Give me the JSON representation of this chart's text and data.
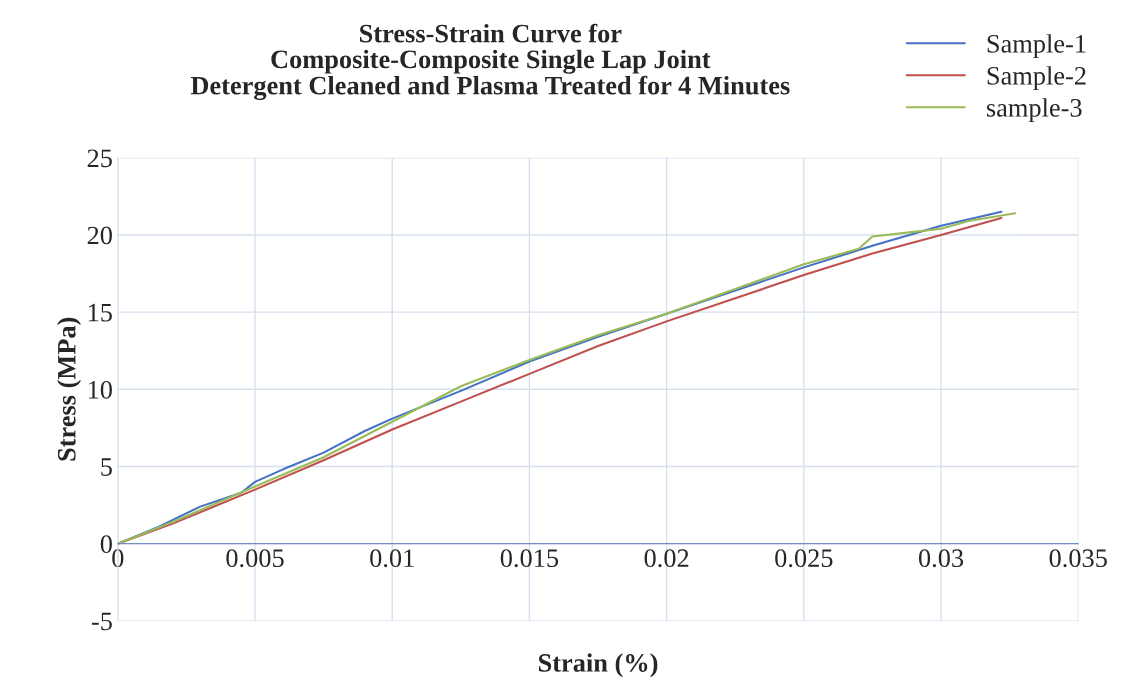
{
  "chart_data": {
    "type": "line",
    "title": "Stress-Strain Curve for\nComposite-Composite Single Lap Joint\nDetergent Cleaned and Plasma Treated for 4 Minutes",
    "xlabel": "Strain (%)",
    "ylabel": "Stress (MPa)",
    "xlim": [
      0,
      0.035
    ],
    "xticks": [
      0,
      0.005,
      0.01,
      0.015,
      0.02,
      0.025,
      0.03,
      0.035
    ],
    "ylim": [
      -5,
      25
    ],
    "yticks": [
      -5,
      0,
      5,
      10,
      15,
      20,
      25
    ],
    "grid": true,
    "legend": "top right",
    "marker": "none",
    "line_style": "solid",
    "series": [
      {
        "name": "Sample-1",
        "color": "#4472c4",
        "x": [
          0,
          0.0015,
          0.003,
          0.0045,
          0.005,
          0.006,
          0.0075,
          0.009,
          0.01,
          0.0125,
          0.015,
          0.0175,
          0.02,
          0.0225,
          0.025,
          0.0275,
          0.03,
          0.0322
        ],
        "values": [
          0,
          1.1,
          2.4,
          3.3,
          4.0,
          4.8,
          5.9,
          7.3,
          8.1,
          9.9,
          11.8,
          13.4,
          14.9,
          16.4,
          17.9,
          19.3,
          20.6,
          21.5
        ]
      },
      {
        "name": "Sample-2",
        "color": "#c0504d",
        "x": [
          0,
          0.002,
          0.005,
          0.0075,
          0.01,
          0.0125,
          0.015,
          0.0175,
          0.02,
          0.0225,
          0.025,
          0.0275,
          0.03,
          0.0322
        ],
        "values": [
          0,
          1.3,
          3.5,
          5.4,
          7.4,
          9.2,
          11.0,
          12.8,
          14.4,
          15.9,
          17.4,
          18.8,
          20.0,
          21.1
        ]
      },
      {
        "name": "sample-3",
        "color": "#9bbb59",
        "x": [
          0,
          0.002,
          0.005,
          0.0075,
          0.01,
          0.0125,
          0.015,
          0.0175,
          0.02,
          0.0225,
          0.025,
          0.027,
          0.0275,
          0.029,
          0.03,
          0.031,
          0.0327
        ],
        "values": [
          0,
          1.4,
          3.7,
          5.6,
          7.9,
          10.2,
          11.9,
          13.5,
          14.9,
          16.5,
          18.1,
          19.1,
          19.9,
          20.2,
          20.4,
          20.9,
          21.4
        ]
      }
    ]
  }
}
